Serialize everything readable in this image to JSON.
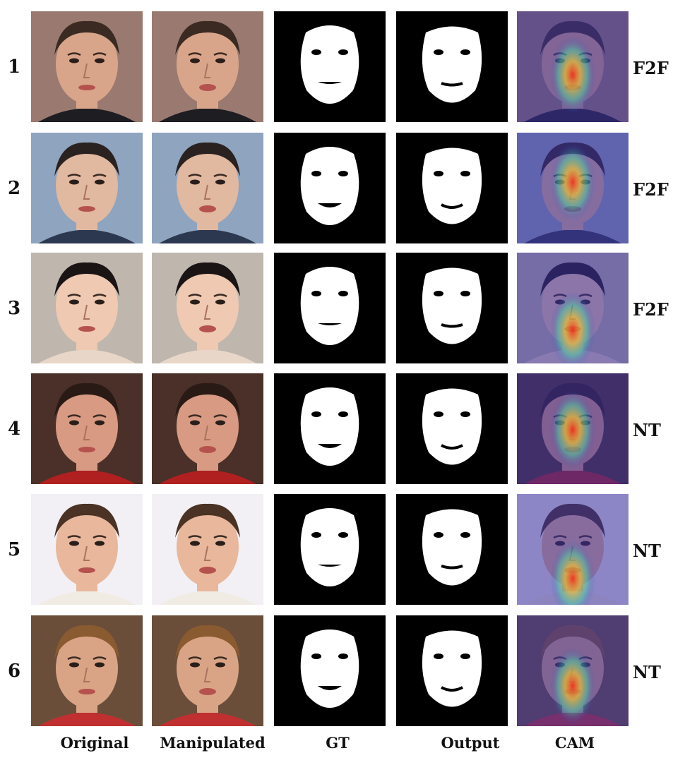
{
  "columns": [
    "Original",
    "Manipulated",
    "GT",
    "Output",
    "CAM"
  ],
  "rows": [
    {
      "number": "1",
      "method": "F2F",
      "skin": "#d9a58a",
      "hair": "#3a2a22",
      "bg": "#9a7a70",
      "cloth": "#1d1d22"
    },
    {
      "number": "2",
      "method": "F2F",
      "skin": "#e1b8a0",
      "hair": "#2a2220",
      "bg": "#8ea4bf",
      "cloth": "#2c3850"
    },
    {
      "number": "3",
      "method": "F2F",
      "skin": "#efc9b2",
      "hair": "#1a1414",
      "bg": "#bfb6ae",
      "cloth": "#e8d6c8"
    },
    {
      "number": "4",
      "method": "NT",
      "skin": "#d89a82",
      "hair": "#2a1a16",
      "bg": "#4a3028",
      "cloth": "#b02020"
    },
    {
      "number": "5",
      "method": "NT",
      "skin": "#e8b79c",
      "hair": "#4a3224",
      "bg": "#f2f0f4",
      "cloth": "#f0ece4"
    },
    {
      "number": "6",
      "method": "NT",
      "skin": "#d9a486",
      "hair": "#8a5a30",
      "bg": "#6a4e3a",
      "cloth": "#c03030"
    }
  ]
}
